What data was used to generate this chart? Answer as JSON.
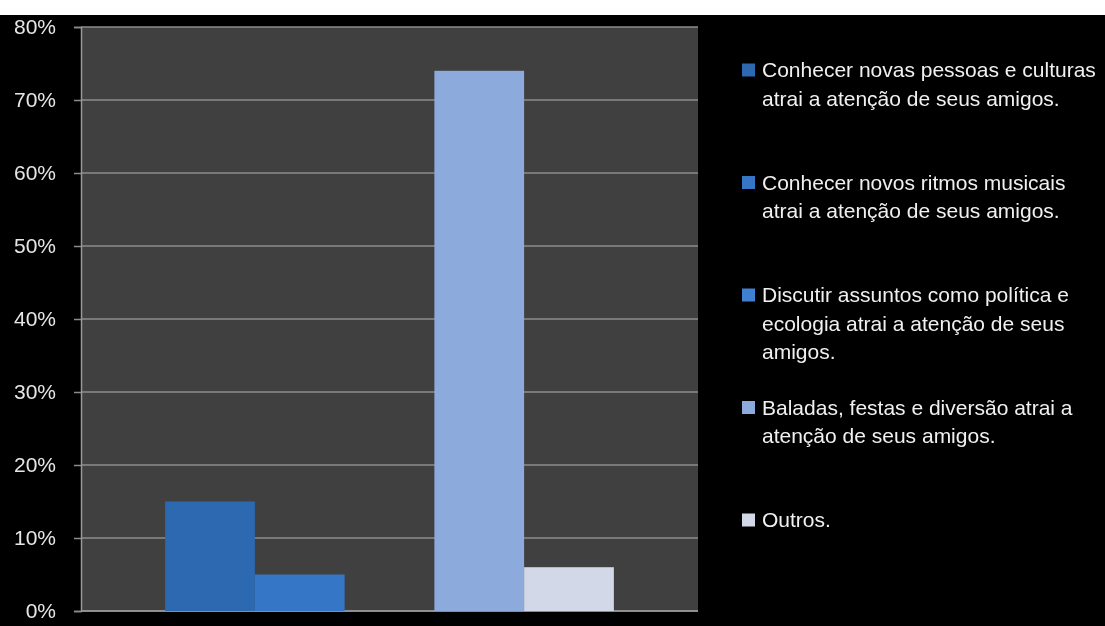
{
  "chart_data": {
    "type": "bar",
    "categories": [
      null
    ],
    "series": [
      {
        "name": "Conhecer novas pessoas e culturas atrai a atenção de seus amigos.",
        "color": "#2c69b0",
        "values": [
          15
        ]
      },
      {
        "name": "Conhecer novos ritmos musicais atrai a atenção de seus amigos.",
        "color": "#3576c6",
        "values": [
          5
        ]
      },
      {
        "name": "Discutir assuntos como política e ecologia atrai a atenção de seus amigos.",
        "color": "#3f80d2",
        "values": [
          0
        ]
      },
      {
        "name": "Baladas, festas e diversão atrai a atenção de seus amigos.",
        "color": "#8caadb",
        "values": [
          74
        ]
      },
      {
        "name": "Outros.",
        "color": "#d2d8e8",
        "values": [
          6
        ]
      }
    ],
    "ylim": [
      0,
      80
    ],
    "yticks": [
      {
        "value": 0,
        "label": "0%"
      },
      {
        "value": 10,
        "label": "10%"
      },
      {
        "value": 20,
        "label": "20%"
      },
      {
        "value": 30,
        "label": "30%"
      },
      {
        "value": 40,
        "label": "40%"
      },
      {
        "value": 50,
        "label": "50%"
      },
      {
        "value": 60,
        "label": "60%"
      },
      {
        "value": 70,
        "label": "70%"
      },
      {
        "value": 80,
        "label": "80%"
      }
    ],
    "grid": "y",
    "legend": "right"
  }
}
